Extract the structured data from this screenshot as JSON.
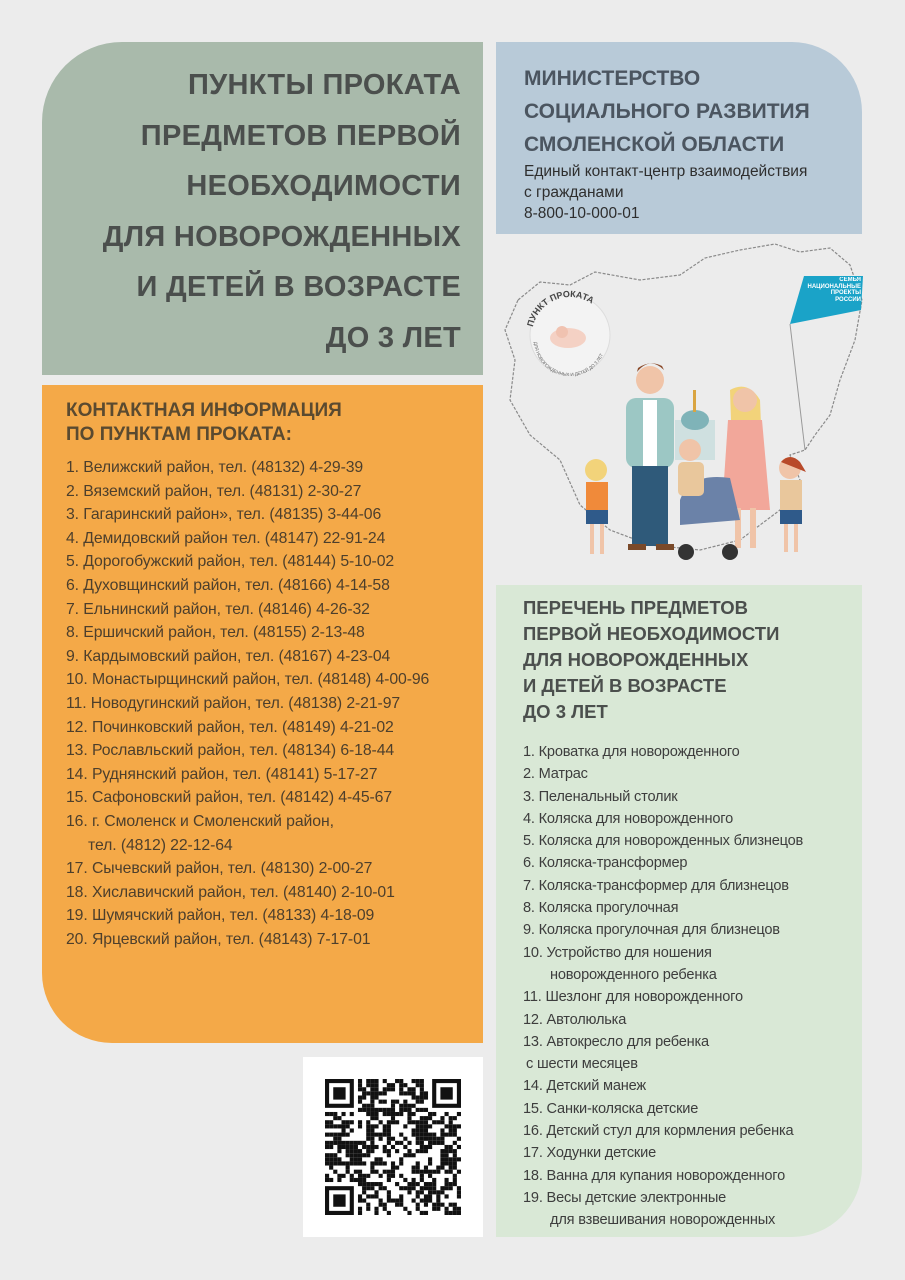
{
  "title": {
    "lines": [
      "ПУНКТЫ ПРОКАТА",
      "ПРЕДМЕТОВ ПЕРВОЙ",
      "НЕОБХОДИМОСТИ",
      "ДЛЯ НОВОРОЖДЕННЫХ",
      "И ДЕТЕЙ В ВОЗРАСТЕ",
      "ДО 3 ЛЕТ"
    ]
  },
  "ministry": {
    "name_lines": [
      "МИНИСТЕРСТВО",
      "СОЦИАЛЬНОГО РАЗВИТИЯ",
      "СМОЛЕНСКОЙ ОБЛАСТИ"
    ],
    "contact_lines": [
      "Единый контакт-центр взаимодействия",
      "с гражданами",
      "8-800-10-000-01"
    ]
  },
  "illustration": {
    "logo_text_top": "ПУНКТ ПРОКАТА",
    "logo_text_bottom": "ДЛЯ НОВОРОЖДЕННЫХ И ДЕТЕЙ ДО 3 ЛЕТ",
    "flag_text": "СЕМЬЯ НАЦИОНАЛЬНЫЕ ПРОЕКТЫ РОССИИ",
    "flag_color": "#1aa3c8"
  },
  "contacts": {
    "heading_lines": [
      "КОНТАКТНАЯ ИНФОРМАЦИЯ",
      "ПО ПУНКТАМ ПРОКАТА:"
    ],
    "items": [
      {
        "text": "1. Велижский район, тел. (48132) 4-29-39"
      },
      {
        "text": "2. Вяземский район, тел. (48131) 2-30-27"
      },
      {
        "text": "3. Гагаринский район», тел. (48135) 3-44-06"
      },
      {
        "text": "4. Демидовский район тел. (48147) 22-91-24"
      },
      {
        "text": "5. Дорогобужский район, тел. (48144) 5-10-02"
      },
      {
        "text": "6. Духовщинский район, тел. (48166) 4-14-58"
      },
      {
        "text": "7. Ельнинский район, тел. (48146) 4-26-32"
      },
      {
        "text": "8. Ершичский район, тел. (48155) 2-13-48"
      },
      {
        "text": "9. Кардымовский район, тел. (48167) 4-23-04"
      },
      {
        "text": "10. Монастырщинский район, тел. (48148) 4-00-96"
      },
      {
        "text": "11. Новодугинский район, тел. (48138) 2-21-97"
      },
      {
        "text": "12. Починковский район, тел. (48149) 4-21-02"
      },
      {
        "text": "13. Рославльский район, тел. (48134) 6-18-44"
      },
      {
        "text": "14. Руднянский район, тел. (48141) 5-17-27"
      },
      {
        "text": "15. Сафоновский район, тел. (48142) 4-45-67"
      },
      {
        "text": "16. г. Смоленск и Смоленский район,",
        "cont": "тел. (4812) 22-12-64"
      },
      {
        "text": "17. Сычевский район, тел. (48130) 2-00-27"
      },
      {
        "text": "18. Хиславичский район, тел. (48140) 2-10-01"
      },
      {
        "text": "19. Шумячский район, тел. (48133) 4-18-09"
      },
      {
        "text": "20. Ярцевский район, тел. (48143) 7-17-01"
      }
    ]
  },
  "items_list": {
    "heading_lines": [
      "ПЕРЕЧЕНЬ ПРЕДМЕТОВ",
      "ПЕРВОЙ НЕОБХОДИМОСТИ",
      "ДЛЯ НОВОРОЖДЕННЫХ",
      "И ДЕТЕЙ В ВОЗРАСТЕ",
      "ДО 3 ЛЕТ"
    ],
    "items": [
      {
        "text": "1. Кроватка для новорожденного"
      },
      {
        "text": "2. Матрас"
      },
      {
        "text": "3. Пеленальный столик"
      },
      {
        "text": "4. Коляска для новорожденного"
      },
      {
        "text": "5. Коляска для новорожденных близнецов"
      },
      {
        "text": "6. Коляска-трансформер"
      },
      {
        "text": "7. Коляска-трансформер для близнецов"
      },
      {
        "text": "8. Коляска прогулочная"
      },
      {
        "text": "9. Коляска прогулочная для близнецов"
      },
      {
        "text": "10. Устройство для ношения",
        "cont": "новорожденного ребенка"
      },
      {
        "text": "11. Шезлонг для новорожденного"
      },
      {
        "text": "12. Автолюлька"
      },
      {
        "text": "13. Автокресло для ребенка",
        "cont": "с шести месяцев",
        "short": true
      },
      {
        "text": "14. Детский манеж"
      },
      {
        "text": "15. Санки-коляска детские"
      },
      {
        "text": "16. Детский стул для кормления ребенка"
      },
      {
        "text": "17. Ходунки детские"
      },
      {
        "text": "18. Ванна для купания новорожденного"
      },
      {
        "text": "19. Весы детские электронные",
        "cont": "для взвешивания новорожденных"
      }
    ]
  },
  "colors": {
    "background": "#ececec",
    "title_box": "#a9baab",
    "ministry_box": "#b8cad8",
    "contacts_box": "#f4a948",
    "items_box": "#d9e8d6"
  }
}
